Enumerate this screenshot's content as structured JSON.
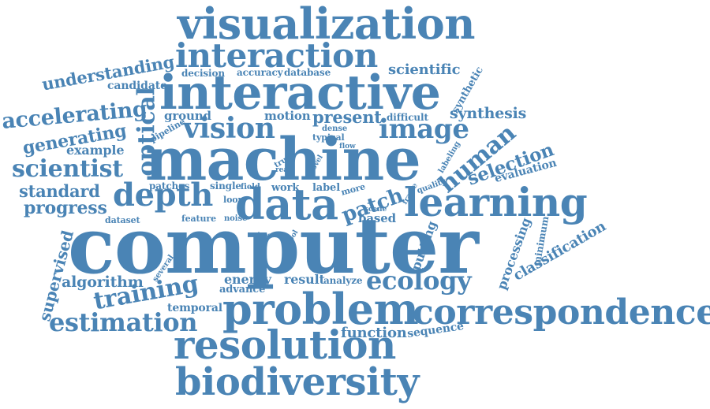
{
  "cloud": {
    "color": "#4a84b5",
    "words": [
      "visualization",
      "interaction",
      "interactive",
      "understanding",
      "candidate",
      "decision",
      "accuracy",
      "database",
      "scientific",
      "synthetic",
      "accelerating",
      "optical",
      "ground",
      "motion",
      "present",
      "difficult",
      "dense",
      "synthesis",
      "vision",
      "image",
      "generating",
      "pipeline",
      "typical",
      "example",
      "machine",
      "truth",
      "real",
      "novel",
      "flow",
      "labeling",
      "human",
      "scientist",
      "selection",
      "evaluation",
      "standard",
      "depth",
      "patches",
      "single",
      "field",
      "work",
      "label",
      "more",
      "frame",
      "quality",
      "data",
      "patch",
      "learning",
      "progress",
      "dataset",
      "loop",
      "feature",
      "noise",
      "scene",
      "based",
      "computer",
      "class",
      "point",
      "tool",
      "putting",
      "minimum",
      "processing",
      "classification",
      "supervised",
      "several",
      "algorithm",
      "energy",
      "result",
      "analyze",
      "ecology",
      "training",
      "advance",
      "temporal",
      "problem",
      "correspondence",
      "estimation",
      "function",
      "sequence",
      "resolution",
      "biodiversity"
    ]
  }
}
